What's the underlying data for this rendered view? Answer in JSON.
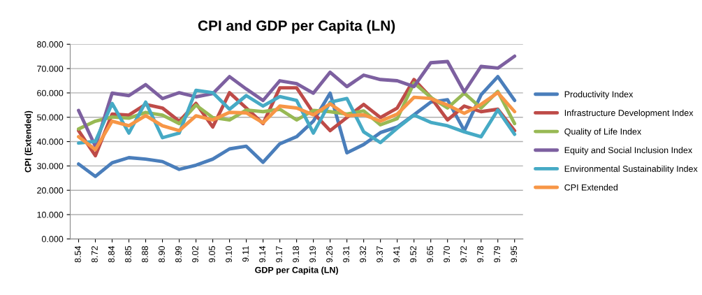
{
  "chart_data": {
    "type": "line",
    "title": "CPI and GDP per Capita (LN)",
    "xlabel": "GDP per Capita (LN)",
    "ylabel": "CPI (Extended)",
    "categories": [
      "8.54",
      "8.72",
      "8.84",
      "8.85",
      "8.88",
      "8.90",
      "8.99",
      "9.02",
      "9.05",
      "9.10",
      "9.11",
      "9.14",
      "9.17",
      "9.18",
      "9.19",
      "9.26",
      "9.31",
      "9.32",
      "9.37",
      "9.41",
      "9.52",
      "9.65",
      "9.70",
      "9.72",
      "9.78",
      "9.79",
      "9.95"
    ],
    "series": [
      {
        "name": "Productivity Index",
        "color": "#4a7ebb",
        "values": [
          30.8,
          25.7,
          31.3,
          33.4,
          32.8,
          31.8,
          28.6,
          30.3,
          32.8,
          37,
          38.1,
          31.5,
          39.1,
          42,
          48.4,
          59.9,
          35.4,
          38.8,
          43.7,
          46,
          51,
          56.2,
          57.2,
          44.5,
          59.2,
          66.7,
          56.9
        ]
      },
      {
        "name": "Infrastructure Development Index",
        "color": "#be4b48",
        "values": [
          44.5,
          34.2,
          51.3,
          50.9,
          55.3,
          53.8,
          48.4,
          55.7,
          46,
          60.1,
          53.8,
          47.4,
          62.1,
          62.1,
          51.8,
          44.5,
          49.9,
          55.3,
          49.9,
          53.8,
          65.5,
          58.2,
          48.9,
          54.6,
          52.3,
          53.3,
          44.5
        ]
      },
      {
        "name": "Quality of Life Index",
        "color": "#98b954",
        "values": [
          45.2,
          48.4,
          50.1,
          49.6,
          52,
          50.9,
          47.4,
          55,
          49.9,
          48.9,
          53,
          52.3,
          53.3,
          48.9,
          52.8,
          52.3,
          51.3,
          52.6,
          46.9,
          49.4,
          64.1,
          58.2,
          53.8,
          59.9,
          53.8,
          60.6,
          47.4
        ]
      },
      {
        "name": "Equity and Social Inclusion Index",
        "color": "#7d60a0",
        "values": [
          52.8,
          38.1,
          59.9,
          58.9,
          63.4,
          57.7,
          60.1,
          58.4,
          59.7,
          66.7,
          61.6,
          56.9,
          65,
          63.8,
          59.9,
          68.5,
          62.6,
          67.3,
          65.5,
          65,
          62.6,
          72.4,
          72.9,
          60.4,
          70.9,
          70.2,
          75.1
        ]
      },
      {
        "name": "Environmental Sustainability Index",
        "color": "#46aac5",
        "values": [
          39.4,
          40.1,
          55.7,
          43.5,
          56.2,
          41.6,
          43.5,
          61.1,
          60.1,
          53.3,
          58.9,
          54.6,
          58.5,
          56.9,
          43.5,
          56.2,
          57.7,
          44,
          39.6,
          45.5,
          50.9,
          47.9,
          46.5,
          44,
          42,
          53,
          43
        ]
      },
      {
        "name": "CPI Extended",
        "color": "#f79646",
        "values": [
          42,
          36.7,
          48.4,
          46.5,
          50.7,
          46.5,
          44.5,
          50.6,
          48.9,
          52,
          51.8,
          47.7,
          54.6,
          53.8,
          51,
          55.5,
          50.7,
          51,
          48.4,
          51.3,
          58.2,
          57.7,
          55,
          51.6,
          55.3,
          60.1,
          52.3
        ]
      }
    ],
    "ylim": [
      0,
      80
    ],
    "yticks": [
      {
        "value": 0,
        "label": "0.000"
      },
      {
        "value": 10,
        "label": "10.000"
      },
      {
        "value": 20,
        "label": "20.000"
      },
      {
        "value": 30,
        "label": "30.000"
      },
      {
        "value": 40,
        "label": "40.000"
      },
      {
        "value": 50,
        "label": "50.000"
      },
      {
        "value": 60,
        "label": "60.000"
      },
      {
        "value": 70,
        "label": "70.000"
      },
      {
        "value": 80,
        "label": "80.000"
      }
    ],
    "grid": "y",
    "legend": "right",
    "marker": "none",
    "line_style": "solid"
  }
}
